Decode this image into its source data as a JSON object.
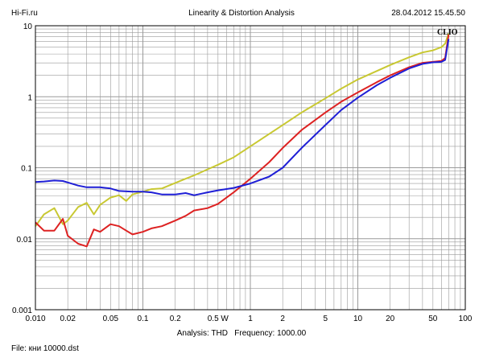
{
  "header": {
    "left": "Hi-Fi.ru",
    "center": "Linearity & Distortion Analysis",
    "right": "28.04.2012 15.45.50"
  },
  "footer": {
    "analysis_label": "Analysis: THD",
    "frequency_label": "Frequency: 1000.00",
    "file_label": "File: кни 10000.dst"
  },
  "watermark": "CLIO",
  "colors": {
    "background": "#ffffff",
    "grid": "#9a9a9a",
    "frame": "#000000",
    "yellow": "#c8c832",
    "red": "#dd2222",
    "blue": "#1f1fd6"
  },
  "chart_data": {
    "type": "line",
    "xscale": "log",
    "yscale": "log",
    "xlim": [
      0.01,
      100
    ],
    "ylim": [
      0.001,
      10
    ],
    "x_tick_labels": [
      {
        "value": 0.01,
        "label": "0.010"
      },
      {
        "value": 0.02,
        "label": "0.02"
      },
      {
        "value": 0.05,
        "label": "0.05"
      },
      {
        "value": 0.1,
        "label": "0.1"
      },
      {
        "value": 0.2,
        "label": "0.2"
      },
      {
        "value": 0.5,
        "label": "0.5 W"
      },
      {
        "value": 1,
        "label": "1"
      },
      {
        "value": 2,
        "label": "2"
      },
      {
        "value": 5,
        "label": "5"
      },
      {
        "value": 10,
        "label": "10"
      },
      {
        "value": 20,
        "label": "20"
      },
      {
        "value": 50,
        "label": "50"
      },
      {
        "value": 100,
        "label": "100"
      }
    ],
    "y_tick_labels": [
      {
        "value": 10,
        "label": "10"
      },
      {
        "value": 1,
        "label": "1"
      },
      {
        "value": 0.1,
        "label": "0.1"
      },
      {
        "value": 0.01,
        "label": "0.01"
      },
      {
        "value": 0.001,
        "label": "0.001"
      }
    ],
    "grid": true,
    "series": [
      {
        "color": "yellow",
        "points": [
          [
            0.01,
            0.015
          ],
          [
            0.012,
            0.022
          ],
          [
            0.015,
            0.027
          ],
          [
            0.018,
            0.016
          ],
          [
            0.02,
            0.018
          ],
          [
            0.025,
            0.028
          ],
          [
            0.03,
            0.032
          ],
          [
            0.035,
            0.022
          ],
          [
            0.04,
            0.03
          ],
          [
            0.05,
            0.038
          ],
          [
            0.06,
            0.041
          ],
          [
            0.07,
            0.034
          ],
          [
            0.08,
            0.042
          ],
          [
            0.1,
            0.046
          ],
          [
            0.12,
            0.05
          ],
          [
            0.15,
            0.051
          ],
          [
            0.2,
            0.061
          ],
          [
            0.25,
            0.07
          ],
          [
            0.3,
            0.078
          ],
          [
            0.4,
            0.095
          ],
          [
            0.5,
            0.11
          ],
          [
            0.7,
            0.14
          ],
          [
            1,
            0.2
          ],
          [
            1.5,
            0.3
          ],
          [
            2,
            0.4
          ],
          [
            3,
            0.6
          ],
          [
            5,
            0.95
          ],
          [
            7,
            1.3
          ],
          [
            10,
            1.75
          ],
          [
            15,
            2.3
          ],
          [
            20,
            2.8
          ],
          [
            30,
            3.6
          ],
          [
            40,
            4.2
          ],
          [
            50,
            4.5
          ],
          [
            60,
            5.0
          ],
          [
            65,
            5.6
          ],
          [
            70,
            7.8
          ]
        ]
      },
      {
        "color": "red",
        "points": [
          [
            0.01,
            0.017
          ],
          [
            0.012,
            0.013
          ],
          [
            0.015,
            0.013
          ],
          [
            0.018,
            0.019
          ],
          [
            0.02,
            0.011
          ],
          [
            0.025,
            0.0085
          ],
          [
            0.03,
            0.0078
          ],
          [
            0.035,
            0.0135
          ],
          [
            0.04,
            0.0125
          ],
          [
            0.05,
            0.016
          ],
          [
            0.06,
            0.015
          ],
          [
            0.07,
            0.013
          ],
          [
            0.08,
            0.0115
          ],
          [
            0.1,
            0.0125
          ],
          [
            0.12,
            0.014
          ],
          [
            0.15,
            0.015
          ],
          [
            0.2,
            0.018
          ],
          [
            0.25,
            0.021
          ],
          [
            0.3,
            0.025
          ],
          [
            0.4,
            0.027
          ],
          [
            0.5,
            0.031
          ],
          [
            0.7,
            0.045
          ],
          [
            1,
            0.07
          ],
          [
            1.5,
            0.12
          ],
          [
            2,
            0.19
          ],
          [
            3,
            0.34
          ],
          [
            5,
            0.6
          ],
          [
            7,
            0.85
          ],
          [
            10,
            1.15
          ],
          [
            15,
            1.6
          ],
          [
            20,
            2.0
          ],
          [
            30,
            2.6
          ],
          [
            40,
            3.0
          ],
          [
            50,
            3.1
          ],
          [
            60,
            3.2
          ],
          [
            65,
            3.5
          ],
          [
            70,
            7.5
          ]
        ]
      },
      {
        "color": "blue",
        "points": [
          [
            0.01,
            0.063
          ],
          [
            0.012,
            0.064
          ],
          [
            0.015,
            0.066
          ],
          [
            0.018,
            0.065
          ],
          [
            0.02,
            0.062
          ],
          [
            0.025,
            0.056
          ],
          [
            0.03,
            0.053
          ],
          [
            0.04,
            0.053
          ],
          [
            0.05,
            0.051
          ],
          [
            0.06,
            0.047
          ],
          [
            0.08,
            0.046
          ],
          [
            0.1,
            0.046
          ],
          [
            0.12,
            0.045
          ],
          [
            0.15,
            0.042
          ],
          [
            0.2,
            0.042
          ],
          [
            0.25,
            0.044
          ],
          [
            0.3,
            0.041
          ],
          [
            0.4,
            0.045
          ],
          [
            0.5,
            0.048
          ],
          [
            0.7,
            0.052
          ],
          [
            1,
            0.06
          ],
          [
            1.5,
            0.075
          ],
          [
            2,
            0.1
          ],
          [
            3,
            0.19
          ],
          [
            5,
            0.4
          ],
          [
            7,
            0.65
          ],
          [
            10,
            0.97
          ],
          [
            15,
            1.45
          ],
          [
            20,
            1.85
          ],
          [
            30,
            2.5
          ],
          [
            40,
            2.9
          ],
          [
            50,
            3.05
          ],
          [
            60,
            3.1
          ],
          [
            65,
            3.3
          ],
          [
            70,
            6.5
          ]
        ]
      }
    ]
  }
}
